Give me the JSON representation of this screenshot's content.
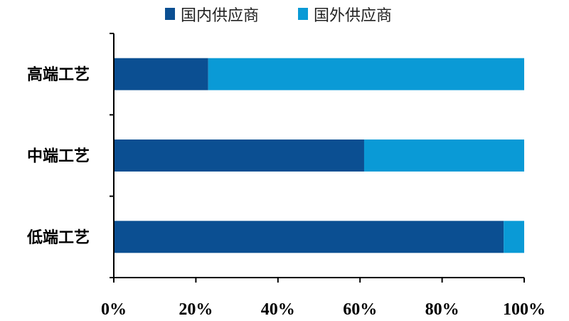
{
  "chart_data": {
    "type": "bar",
    "orientation": "horizontal",
    "stacked": true,
    "categories": [
      "高端工艺",
      "中端工艺",
      "低端工艺"
    ],
    "series": [
      {
        "name": "国内供应商",
        "values": [
          23,
          61,
          95
        ],
        "color": "#0b4f92"
      },
      {
        "name": "国外供应商",
        "values": [
          77,
          39,
          5
        ],
        "color": "#0a9ad6"
      }
    ],
    "xlim": [
      0,
      100
    ],
    "xticks": [
      "0%",
      "20%",
      "40%",
      "60%",
      "80%",
      "100%"
    ],
    "title": "",
    "xlabel": "",
    "ylabel": "",
    "grid": false,
    "legend_position": "top"
  }
}
